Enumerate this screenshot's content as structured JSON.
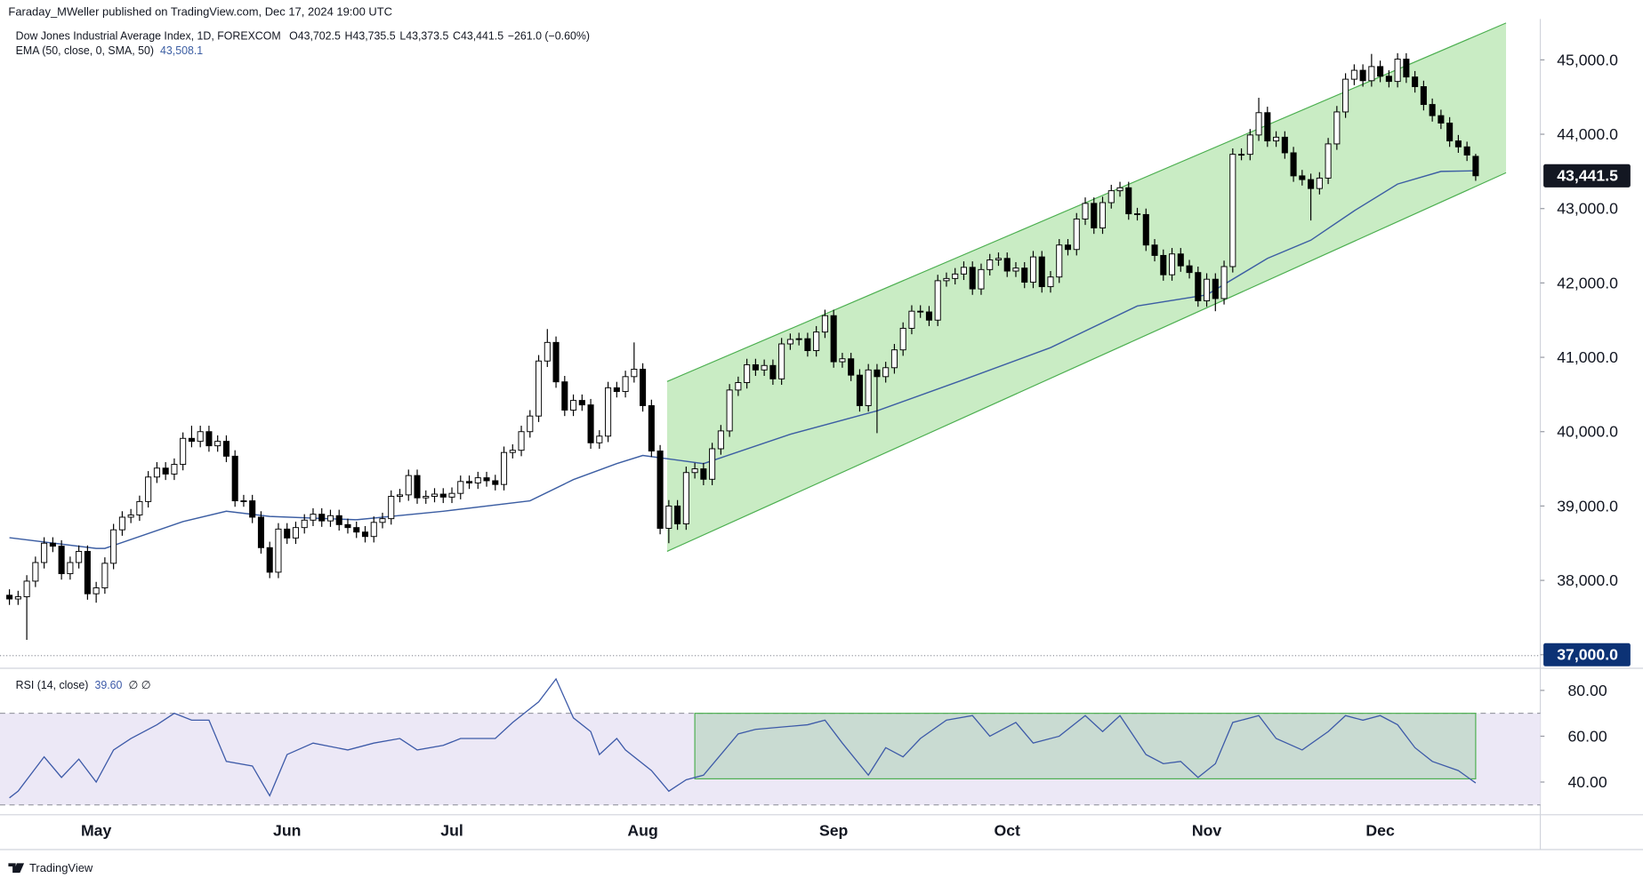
{
  "header": {
    "publisher": "Faraday_MWeller published on TradingView.com, Dec 17, 2024 19:00 UTC",
    "brand": "TradingView"
  },
  "chart_data": [
    {
      "type": "candlestick",
      "title": "Dow Jones Industrial Average Index, 1D, FOREXCOM",
      "legend_ohlc": [
        "O43,702.5",
        "H43,735.5",
        "L43,373.5",
        "C43,441.5",
        "−261.0 (−0.60%)"
      ],
      "categories": [
        null,
        null,
        null,
        null,
        null,
        null,
        null,
        null,
        null,
        null,
        "May",
        null,
        null,
        null,
        null,
        null,
        null,
        null,
        null,
        null,
        null,
        null,
        null,
        null,
        null,
        null,
        null,
        null,
        null,
        null,
        null,
        null,
        "Jun",
        null,
        null,
        null,
        null,
        null,
        null,
        null,
        null,
        null,
        null,
        null,
        null,
        null,
        null,
        null,
        null,
        null,
        null,
        "Jul",
        null,
        null,
        null,
        null,
        null,
        null,
        null,
        null,
        null,
        null,
        null,
        null,
        null,
        null,
        null,
        null,
        null,
        null,
        null,
        null,
        null,
        "Aug",
        null,
        null,
        null,
        null,
        null,
        null,
        null,
        null,
        null,
        null,
        null,
        null,
        null,
        null,
        null,
        null,
        null,
        null,
        null,
        null,
        null,
        "Sep",
        null,
        null,
        null,
        null,
        null,
        null,
        null,
        null,
        null,
        null,
        null,
        null,
        null,
        null,
        null,
        null,
        null,
        null,
        null,
        "Oct",
        null,
        null,
        null,
        null,
        null,
        null,
        null,
        null,
        null,
        null,
        null,
        null,
        null,
        null,
        null,
        null,
        null,
        null,
        null,
        null,
        null,
        null,
        "Nov",
        null,
        null,
        null,
        null,
        null,
        null,
        null,
        null,
        null,
        null,
        null,
        null,
        null,
        null,
        null,
        null,
        null,
        null,
        null,
        "Dec",
        null,
        null,
        null,
        null,
        null,
        null,
        null,
        null,
        null,
        null,
        null
      ],
      "open": [
        37800,
        37750,
        37780,
        37990,
        38240,
        38500,
        38460,
        38090,
        38240,
        38390,
        37820,
        37900,
        38230,
        38680,
        38850,
        38880,
        39060,
        39390,
        39510,
        39430,
        39560,
        39910,
        39870,
        40000,
        39810,
        39870,
        39670,
        39070,
        39070,
        38850,
        38440,
        38110,
        38690,
        38570,
        38710,
        38810,
        38890,
        38800,
        38870,
        38750,
        38710,
        38650,
        38590,
        38780,
        38830,
        39130,
        39150,
        39410,
        39110,
        39130,
        39160,
        39120,
        39170,
        39330,
        39310,
        39380,
        39340,
        39290,
        39720,
        39750,
        40000,
        40210,
        40950,
        41200,
        40670,
        40290,
        40420,
        40360,
        39850,
        39940,
        40590,
        40540,
        40740,
        40840,
        40350,
        39740,
        38700,
        39000,
        38760,
        39450,
        39500,
        39360,
        39770,
        40010,
        40560,
        40660,
        40900,
        40830,
        40890,
        40710,
        41180,
        41240,
        41250,
        41090,
        41340,
        41560,
        40940,
        40980,
        40760,
        40350,
        40830,
        40740,
        40860,
        41100,
        41390,
        41620,
        41610,
        41500,
        42030,
        42060,
        42120,
        42210,
        41920,
        42180,
        42310,
        42330,
        42160,
        42200,
        42010,
        42350,
        41950,
        42080,
        42510,
        42450,
        42860,
        43070,
        42740,
        43080,
        43240,
        43280,
        42930,
        42920,
        42510,
        42370,
        42110,
        42390,
        42230,
        42140,
        41760,
        42050,
        41790,
        42220,
        43730,
        43730,
        43990,
        44290,
        43910,
        43960,
        43750,
        43440,
        43390,
        43270,
        43410,
        43870,
        44300,
        44740,
        44860,
        44720,
        44910,
        44780,
        44710,
        45010,
        44770,
        44640,
        44400,
        44250,
        44150,
        43910,
        43830,
        43702.5
      ],
      "high": [
        37880,
        37860,
        38070,
        38320,
        38580,
        38580,
        38540,
        38320,
        38470,
        38470,
        37980,
        38310,
        38760,
        38930,
        38960,
        39140,
        39470,
        39590,
        39590,
        39640,
        39990,
        40080,
        40080,
        40080,
        39950,
        39950,
        39750,
        39150,
        39150,
        38930,
        38520,
        38770,
        38770,
        38790,
        38890,
        38970,
        38970,
        38950,
        38950,
        38830,
        38790,
        38730,
        38860,
        38910,
        39210,
        39230,
        39490,
        39490,
        39210,
        39240,
        39240,
        39250,
        39410,
        39410,
        39460,
        39460,
        39420,
        39800,
        39830,
        40080,
        40290,
        41030,
        41380,
        41280,
        40750,
        40500,
        40500,
        40440,
        40020,
        40670,
        40670,
        40820,
        41200,
        40920,
        40430,
        39820,
        39080,
        39080,
        39530,
        39580,
        39580,
        39850,
        40090,
        40640,
        40740,
        40980,
        40980,
        40970,
        40970,
        41260,
        41320,
        41330,
        41330,
        41420,
        41640,
        41640,
        41060,
        41060,
        40840,
        40910,
        40910,
        40940,
        41180,
        41470,
        41700,
        41700,
        41690,
        42110,
        42140,
        42200,
        42290,
        42290,
        42260,
        42390,
        42410,
        42410,
        42280,
        42280,
        42430,
        42430,
        42160,
        42590,
        42590,
        42940,
        43150,
        43150,
        43160,
        43320,
        43360,
        43360,
        43010,
        43000,
        42590,
        42450,
        42470,
        42470,
        42310,
        42220,
        42130,
        42130,
        42300,
        43810,
        43810,
        44070,
        44490,
        44370,
        44040,
        44040,
        43830,
        43520,
        43470,
        43490,
        43950,
        44380,
        44820,
        44940,
        44940,
        45080,
        44990,
        44860,
        45090,
        45090,
        44850,
        44720,
        44480,
        44330,
        44230,
        43990,
        43900,
        43735.5
      ],
      "low": [
        37670,
        37670,
        37200,
        37910,
        38160,
        38380,
        38010,
        38010,
        38160,
        37740,
        37700,
        37820,
        38150,
        38600,
        38770,
        38800,
        38980,
        39310,
        39350,
        39350,
        39480,
        39790,
        39790,
        39730,
        39730,
        39590,
        38990,
        38990,
        38770,
        38360,
        38030,
        38030,
        38490,
        38490,
        38630,
        38730,
        38720,
        38720,
        38670,
        38630,
        38570,
        38510,
        38510,
        38700,
        38750,
        39050,
        39070,
        39030,
        39030,
        39050,
        39040,
        39040,
        39090,
        39230,
        39230,
        39260,
        39210,
        39210,
        39640,
        39670,
        39920,
        40130,
        40870,
        40590,
        40210,
        40210,
        40280,
        39770,
        39770,
        39860,
        40460,
        40460,
        40660,
        40270,
        39660,
        38620,
        38500,
        38680,
        38680,
        39370,
        39280,
        39280,
        39690,
        39930,
        40480,
        40580,
        40750,
        40750,
        40630,
        40630,
        41100,
        41160,
        41010,
        41010,
        41260,
        40860,
        40860,
        40680,
        40270,
        40270,
        39980,
        40660,
        40780,
        41020,
        41310,
        41530,
        41420,
        41420,
        41950,
        41980,
        42040,
        41840,
        41840,
        42100,
        42230,
        42080,
        42080,
        41930,
        41930,
        41870,
        41870,
        42000,
        42370,
        42370,
        42780,
        42660,
        42660,
        43000,
        43160,
        42850,
        42840,
        42430,
        42290,
        42030,
        42030,
        42150,
        42060,
        41680,
        41680,
        41620,
        41710,
        42140,
        43650,
        43650,
        43910,
        43830,
        43830,
        43670,
        43360,
        43310,
        42840,
        43190,
        43330,
        43790,
        44220,
        44660,
        44640,
        44640,
        44700,
        44630,
        44630,
        44690,
        44560,
        44320,
        44170,
        44070,
        43830,
        43750,
        43640,
        43373.5
      ],
      "close": [
        37750,
        37780,
        37990,
        38240,
        38500,
        38460,
        38090,
        38240,
        38390,
        37820,
        37900,
        38230,
        38680,
        38850,
        38880,
        39060,
        39390,
        39510,
        39430,
        39560,
        39910,
        39870,
        40000,
        39810,
        39870,
        39670,
        39070,
        39070,
        38850,
        38440,
        38110,
        38690,
        38570,
        38710,
        38810,
        38890,
        38800,
        38870,
        38750,
        38710,
        38650,
        38590,
        38780,
        38830,
        39130,
        39150,
        39410,
        39110,
        39130,
        39160,
        39120,
        39170,
        39330,
        39310,
        39380,
        39340,
        39290,
        39720,
        39750,
        40000,
        40210,
        40950,
        41200,
        40670,
        40290,
        40420,
        40360,
        39850,
        39940,
        40590,
        40540,
        40740,
        40840,
        40350,
        39740,
        38700,
        39000,
        38760,
        39450,
        39500,
        39360,
        39770,
        40010,
        40560,
        40660,
        40900,
        40830,
        40890,
        40710,
        41180,
        41240,
        41250,
        41090,
        41340,
        41560,
        40940,
        40980,
        40760,
        40350,
        40830,
        40740,
        40860,
        41100,
        41390,
        41620,
        41610,
        41500,
        42030,
        42060,
        42120,
        42210,
        41920,
        42180,
        42310,
        42330,
        42160,
        42200,
        42010,
        42350,
        41950,
        42080,
        42510,
        42450,
        42860,
        43070,
        42740,
        43080,
        43240,
        43280,
        42930,
        42920,
        42510,
        42370,
        42110,
        42390,
        42230,
        42140,
        41760,
        42050,
        41790,
        42220,
        43730,
        43730,
        43990,
        44290,
        43910,
        43960,
        43750,
        43440,
        43390,
        43270,
        43410,
        43870,
        44300,
        44740,
        44860,
        44720,
        44910,
        44780,
        44710,
        45010,
        44770,
        44640,
        44400,
        44250,
        44150,
        43910,
        43830,
        43720,
        43441.5
      ],
      "up_color": "#ffffff",
      "down_color": "#000000",
      "edge_color": "#000000",
      "last_label": "43,441.5",
      "ema": {
        "name": "EMA (50, close, 0, SMA, 50)",
        "value_label": "43,508.1",
        "color": "#3c5ea3",
        "x": [
          0,
          10,
          11,
          20,
          25,
          30,
          40,
          50,
          60,
          65,
          70,
          73,
          80,
          90,
          100,
          110,
          120,
          130,
          138,
          145,
          150,
          155,
          160,
          165,
          169
        ],
        "values": [
          38574,
          38430,
          38430,
          38790,
          38930,
          38860,
          38815,
          38930,
          39070,
          39355,
          39570,
          39680,
          39570,
          39965,
          40280,
          40700,
          41130,
          41690,
          41840,
          42330,
          42575,
          42970,
          43330,
          43500,
          43508.1
        ]
      },
      "channel": {
        "x": [
          75.8,
          172.5
        ],
        "upper": [
          40674,
          45496
        ],
        "lower": [
          38390,
          43482
        ],
        "color": "#4caf50",
        "fill": "#c9ecc4"
      },
      "xlim": [
        -1.087,
        176.45
      ],
      "ylim": [
        36960,
        45550
      ],
      "yticks": [
        {
          "value": 37000,
          "label": "37,000.0"
        },
        {
          "value": 38000,
          "label": "38,000.0"
        },
        {
          "value": 39000,
          "label": "39,000.0"
        },
        {
          "value": 40000,
          "label": "40,000.0"
        },
        {
          "value": 41000,
          "label": "41,000.0"
        },
        {
          "value": 42000,
          "label": "42,000.0"
        },
        {
          "value": 43000,
          "label": "43,000.0"
        },
        {
          "value": 44000,
          "label": "44,000.0"
        },
        {
          "value": 45000,
          "label": "45,000.0"
        }
      ],
      "highlight_tick": 0
    },
    {
      "type": "line",
      "title": "RSI (14, close)",
      "value_label": "39.60",
      "extra": "∅ ∅",
      "color": "#3d5aa8",
      "x": [
        0,
        1,
        4,
        6,
        8,
        10,
        12,
        14,
        17,
        19,
        21,
        23,
        25,
        28,
        30,
        32,
        35,
        39,
        42,
        45,
        47,
        50,
        52,
        56,
        58,
        61,
        63,
        65,
        67,
        68,
        70,
        71,
        74,
        76,
        78,
        80,
        82,
        84,
        86,
        89,
        92,
        94,
        96,
        99,
        101,
        103,
        105,
        108,
        111,
        113,
        116,
        118,
        121,
        124,
        126,
        128,
        131,
        133,
        135,
        137,
        139,
        141,
        144,
        146,
        149,
        152,
        154,
        156,
        158,
        160,
        162,
        164,
        167,
        169
      ],
      "values": [
        33.1,
        36,
        51,
        42,
        50,
        40,
        54,
        59,
        65,
        70,
        67,
        67,
        49,
        47,
        34,
        52,
        57,
        54,
        57,
        59,
        54,
        56,
        59,
        59,
        66,
        75,
        85,
        68,
        62,
        52,
        59,
        54,
        45,
        36,
        41,
        43,
        52,
        61,
        63,
        64,
        65,
        67,
        57,
        43,
        55,
        51,
        59,
        67,
        69,
        60,
        66,
        57,
        60,
        69,
        62,
        69,
        52,
        48,
        49,
        42,
        48,
        66,
        69,
        59,
        54,
        62,
        69,
        67,
        69,
        65,
        55,
        49,
        45,
        39.6
      ],
      "ylim": [
        27.1,
        86.9
      ],
      "yticks": [
        {
          "value": 40,
          "label": "40.00"
        },
        {
          "value": 60,
          "label": "60.00"
        },
        {
          "value": 80,
          "label": "80.00"
        }
      ],
      "bands": [
        30,
        70
      ],
      "band_fill": "#ece8f6",
      "box": {
        "x": [
          79,
          169
        ],
        "y": [
          41.4,
          70
        ],
        "color": "#4caf50",
        "fill": "rgba(76,175,80,0.22)"
      }
    }
  ]
}
